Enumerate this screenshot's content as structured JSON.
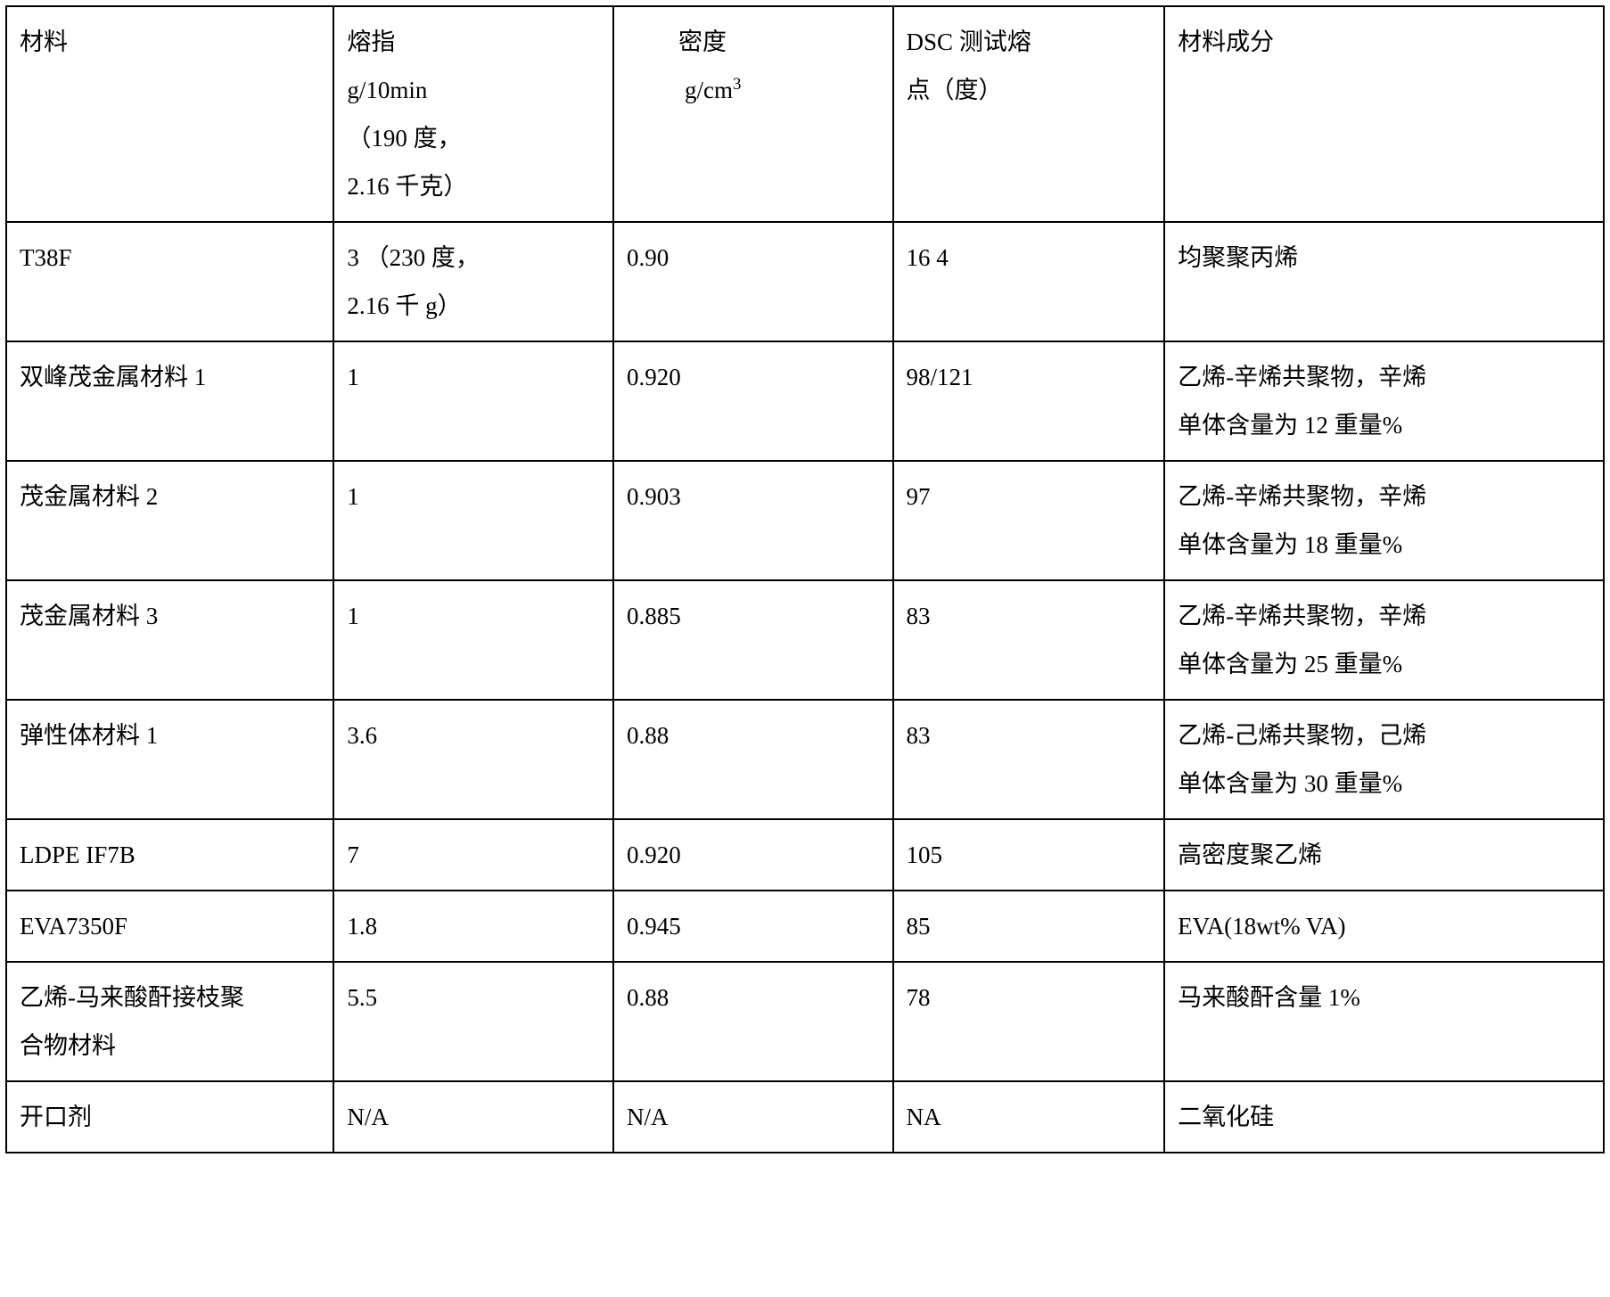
{
  "table": {
    "border_color": "#000000",
    "border_width": 2,
    "background_color": "#ffffff",
    "text_color": "#000000",
    "font_size": 27,
    "col_widths": [
      "20.5%",
      "17.5%",
      "17.5%",
      "17%",
      "27.5%"
    ],
    "headers": {
      "material": "材料",
      "melt_index_line1": "熔指",
      "melt_index_line2": "g/10min",
      "melt_index_line3": "（190 度，",
      "melt_index_line4": "2.16 千克）",
      "density_line1": "密度",
      "density_line2_prefix": "g/cm",
      "density_line2_sup": "3",
      "dsc_line1": "DSC 测试熔",
      "dsc_line2": "点（度）",
      "component": "材料成分"
    },
    "rows": [
      {
        "material": "T38F",
        "melt_index_line1": "3  （230 度，",
        "melt_index_line2": "2.16 千 g）",
        "density": " 0.90",
        "dsc": "16 4",
        "component": "均聚聚丙烯"
      },
      {
        "material": "双峰茂金属材料 1",
        "melt_index": "1",
        "density": "0.920",
        "dsc": "98/121",
        "component_line1": "乙烯-辛烯共聚物，辛烯",
        "component_line2": "单体含量为 12 重量%"
      },
      {
        "material": "茂金属材料 2",
        "melt_index": "1",
        "density": "0.903",
        "dsc": "97",
        "component_line1": "乙烯-辛烯共聚物，辛烯",
        "component_line2": "单体含量为 18 重量%"
      },
      {
        "material": "茂金属材料 3",
        "melt_index": "1",
        "density": "0.885",
        "dsc": "83",
        "component_line1": "乙烯-辛烯共聚物，辛烯",
        "component_line2": "单体含量为 25 重量%"
      },
      {
        "material": "弹性体材料 1",
        "melt_index": "3.6",
        "density": "0.88",
        "dsc": "83",
        "component_line1": "乙烯-己烯共聚物，己烯",
        "component_line2": "单体含量为 30   重量%"
      },
      {
        "material": "LDPE IF7B",
        "melt_index": "7",
        "density": "0.920",
        "dsc": "105",
        "component": "高密度聚乙烯"
      },
      {
        "material": "EVA7350F",
        "melt_index": "1.8",
        "density": "0.945",
        "dsc": "85",
        "component": "EVA(18wt% VA)"
      },
      {
        "material_line1": "乙烯-马来酸酐接枝聚",
        "material_line2": "合物材料",
        "melt_index": "5.5",
        "density": "0.88",
        "dsc": "78",
        "component": "马来酸酐含量 1%"
      },
      {
        "material": "开口剂",
        "melt_index": "N/A",
        "density": "N/A",
        "dsc": "NA",
        "component": "二氧化硅"
      }
    ]
  }
}
